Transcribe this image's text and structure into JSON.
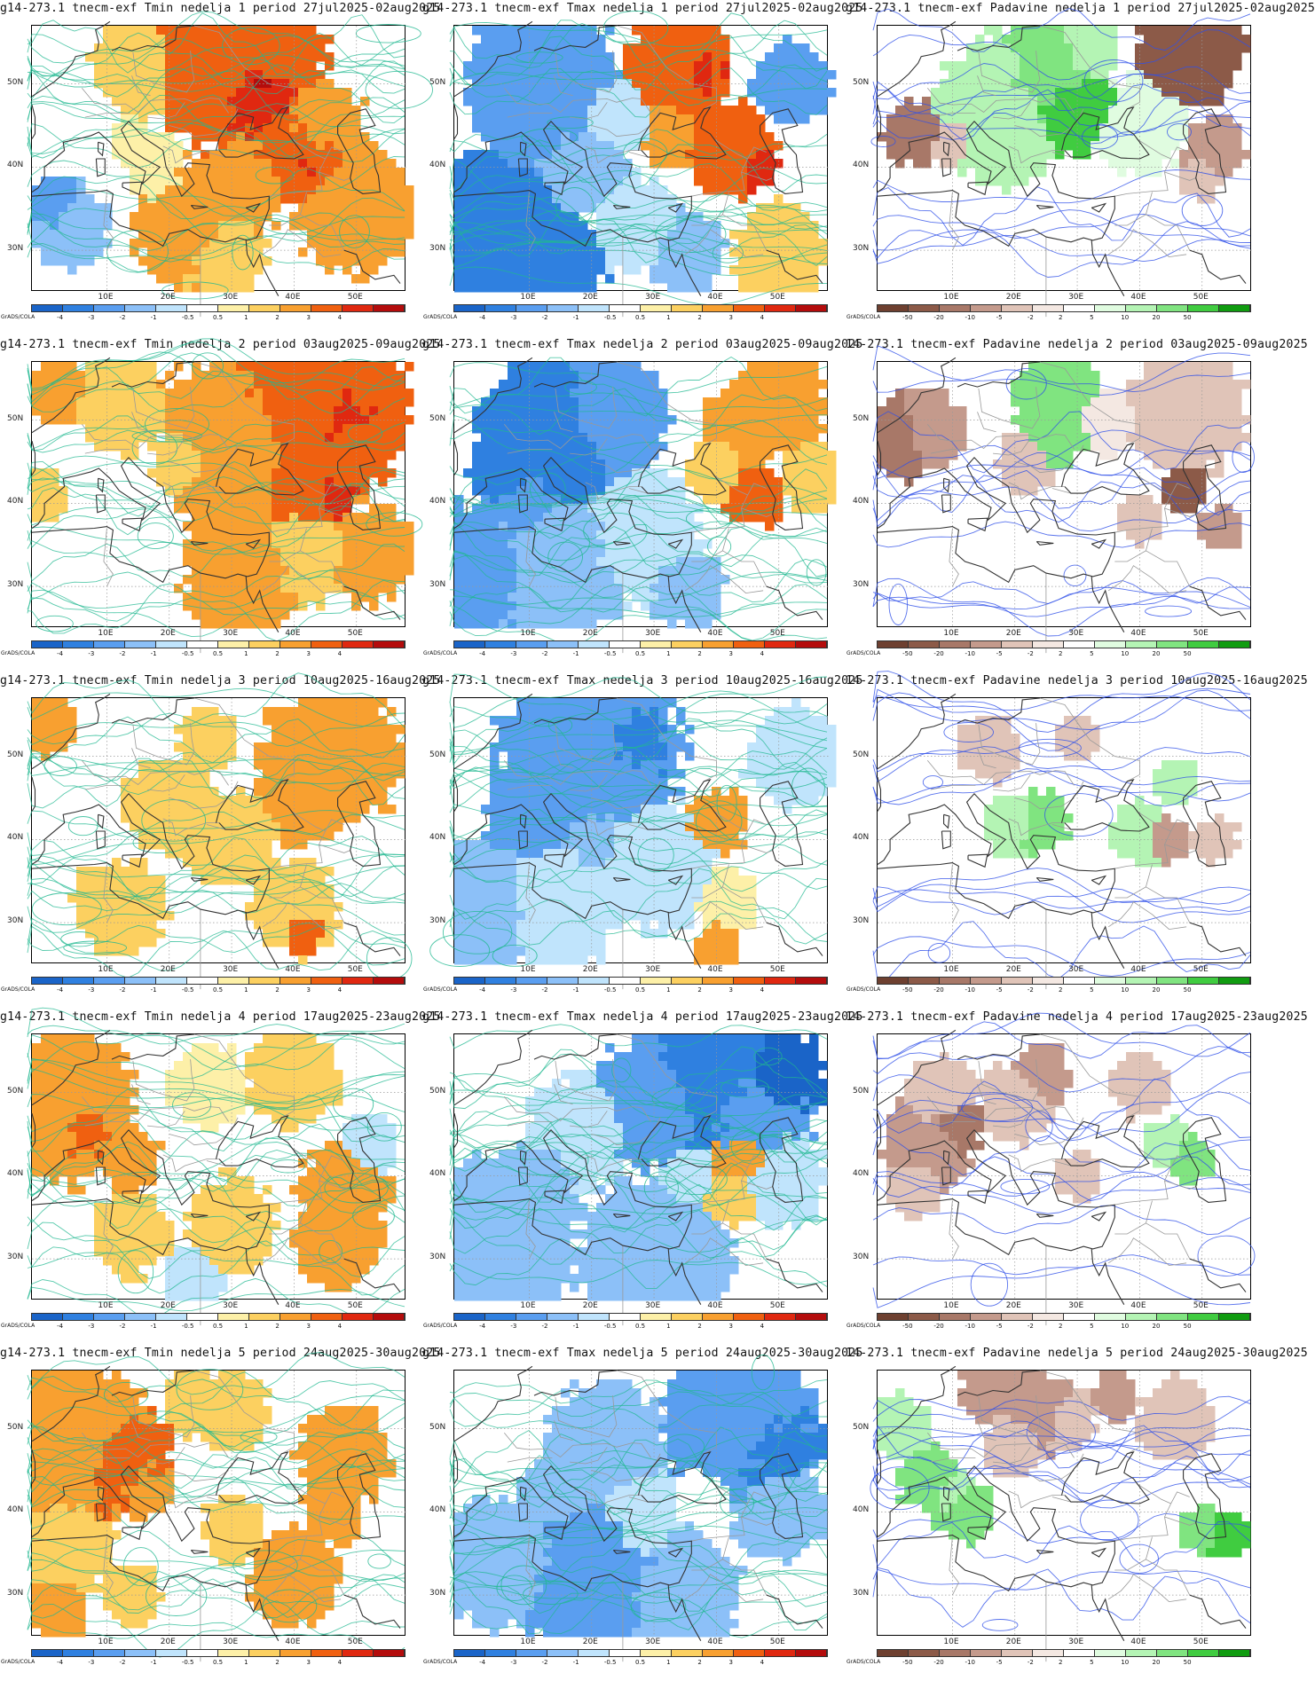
{
  "grads_label": "GrADS/COLA",
  "lat_ticks": [
    "50N",
    "40N",
    "30N"
  ],
  "lon_ticks": [
    "10E",
    "20E",
    "30E",
    "40E",
    "50E"
  ],
  "colorbars": {
    "temp": {
      "labels": [
        "-4",
        "-3",
        "-2",
        "-1",
        "-0.5",
        "0.5",
        "1",
        "2",
        "3",
        "4"
      ],
      "colors": [
        "#1a64c8",
        "#2f80e0",
        "#5a9ef0",
        "#8cc0f8",
        "#c0e4fc",
        "#ffffff",
        "#fdf0a8",
        "#fcd060",
        "#f8a030",
        "#f06010",
        "#e02810",
        "#b40c0c"
      ]
    },
    "precip": {
      "labels": [
        "-50",
        "-20",
        "-10",
        "-5",
        "-2",
        "2",
        "5",
        "10",
        "20",
        "50"
      ],
      "colors": [
        "#6e4030",
        "#8c5a48",
        "#a87868",
        "#c49a8c",
        "#e0c4b8",
        "#f4e8e2",
        "#ffffff",
        "#e0fce0",
        "#b4f4b4",
        "#80e480",
        "#40cc40",
        "#109c10"
      ]
    }
  },
  "panels": [
    {
      "title": "g14-273.1 tnecm-exf Tmin nedelja 1 period 27jul2025-02aug2025",
      "type": "tmin"
    },
    {
      "title": "g14-273.1 tnecm-exf Tmax nedelja 1 period 27jul2025-02aug2025",
      "type": "tmax"
    },
    {
      "title": "g14-273.1 tnecm-exf Padavine nedelja 1 period 27jul2025-02aug2025",
      "type": "precip"
    },
    {
      "title": "g14-273.1 tnecm-exf Tmin nedelja 2 period 03aug2025-09aug2025",
      "type": "tmin"
    },
    {
      "title": "g14-273.1 tnecm-exf Tmax nedelja 2 period 03aug2025-09aug2025",
      "type": "tmax"
    },
    {
      "title": "14-273.1 tnecm-exf Padavine nedelja 2 period 03aug2025-09aug2025",
      "type": "precip"
    },
    {
      "title": "g14-273.1 tnecm-exf Tmin nedelja 3 period 10aug2025-16aug2025",
      "type": "tmin"
    },
    {
      "title": "g14-273.1 tnecm-exf Tmax nedelja 3 period 10aug2025-16aug2025",
      "type": "tmax"
    },
    {
      "title": "14-273.1 tnecm-exf Padavine nedelja 3 period 10aug2025-16aug2025",
      "type": "precip"
    },
    {
      "title": "g14-273.1 tnecm-exf Tmin nedelja 4 period 17aug2025-23aug2025",
      "type": "tmin"
    },
    {
      "title": "g14-273.1 tnecm-exf Tmax nedelja 4 period 17aug2025-23aug2025",
      "type": "tmax"
    },
    {
      "title": "14-273.1 tnecm-exf Padavine nedelja 4 period 17aug2025-23aug2025",
      "type": "precip"
    },
    {
      "title": "g14-273.1 tnecm-exf Tmin nedelja 5 period 24aug2025-30aug2025",
      "type": "tmin"
    },
    {
      "title": "g14-273.1 tnecm-exf Tmax nedelja 5 period 24aug2025-30aug2025",
      "type": "tmax"
    },
    {
      "title": "14-273.1 tnecm-exf Padavine nedelja 5 period 24aug2025-30aug2025",
      "type": "precip"
    }
  ]
}
